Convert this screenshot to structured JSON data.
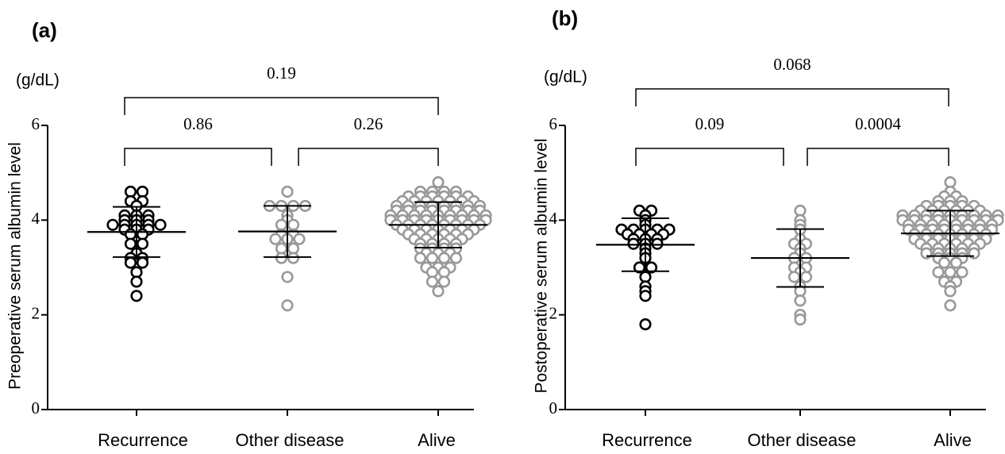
{
  "chart_data": [
    {
      "type": "strip",
      "label": "(a)",
      "unit": "(g/dL)",
      "ylabel": "Preoperative serum albumin level",
      "categories": [
        "Recurrence",
        "Other disease",
        "Alive"
      ],
      "ylim": [
        0,
        6
      ],
      "yticks": [
        0,
        2,
        4,
        6
      ],
      "comparisons": [
        0.19,
        0.86,
        0.26
      ],
      "groups": [
        {
          "color": "#000000",
          "mean": 3.75,
          "sd": 0.53,
          "values": [
            4.6,
            4.6,
            4.4,
            4.4,
            4.3,
            4.1,
            4.1,
            4.1,
            4.0,
            4.0,
            4.0,
            3.9,
            3.9,
            3.9,
            3.9,
            3.9,
            3.8,
            3.8,
            3.8,
            3.7,
            3.7,
            3.5,
            3.5,
            3.3,
            3.2,
            3.2,
            3.1,
            3.1,
            2.9,
            2.7,
            2.4
          ]
        },
        {
          "color": "#999999",
          "mean": 3.76,
          "sd": 0.54,
          "values": [
            4.6,
            4.3,
            4.3,
            4.3,
            4.3,
            4.1,
            4.0,
            3.9,
            3.9,
            3.7,
            3.7,
            3.6,
            3.6,
            3.6,
            3.4,
            3.4,
            3.2,
            3.2,
            2.8,
            2.2
          ]
        },
        {
          "color": "#999999",
          "mean": 3.9,
          "sd": 0.48,
          "values": [
            4.8,
            4.6,
            4.6,
            4.6,
            4.6,
            4.5,
            4.5,
            4.5,
            4.5,
            4.5,
            4.5,
            4.4,
            4.4,
            4.4,
            4.4,
            4.4,
            4.4,
            4.4,
            4.3,
            4.3,
            4.3,
            4.3,
            4.3,
            4.3,
            4.3,
            4.3,
            4.2,
            4.2,
            4.2,
            4.2,
            4.2,
            4.2,
            4.2,
            4.2,
            4.1,
            4.1,
            4.1,
            4.1,
            4.1,
            4.1,
            4.1,
            4.1,
            4.1,
            4.0,
            4.0,
            4.0,
            4.0,
            4.0,
            4.0,
            4.0,
            4.0,
            4.0,
            3.9,
            3.9,
            3.9,
            3.9,
            3.9,
            3.9,
            3.9,
            3.9,
            3.8,
            3.8,
            3.8,
            3.8,
            3.8,
            3.8,
            3.8,
            3.7,
            3.7,
            3.7,
            3.7,
            3.7,
            3.7,
            3.6,
            3.6,
            3.6,
            3.6,
            3.6,
            3.5,
            3.5,
            3.5,
            3.5,
            3.4,
            3.4,
            3.4,
            3.4,
            3.3,
            3.3,
            3.3,
            3.2,
            3.2,
            3.2,
            3.2,
            3.0,
            3.0,
            3.0,
            2.9,
            2.9,
            2.7,
            2.7,
            2.5
          ]
        }
      ]
    },
    {
      "type": "strip",
      "label": "(b)",
      "unit": "(g/dL)",
      "ylabel": "Postoperative serum albumin level",
      "categories": [
        "Recurrence",
        "Other disease",
        "Alive"
      ],
      "ylim": [
        0,
        6
      ],
      "yticks": [
        0,
        2,
        4,
        6
      ],
      "comparisons": [
        0.068,
        0.09,
        0.0004
      ],
      "groups": [
        {
          "color": "#000000",
          "mean": 3.48,
          "sd": 0.56,
          "values": [
            4.2,
            4.2,
            4.1,
            4.0,
            3.9,
            3.8,
            3.8,
            3.8,
            3.8,
            3.8,
            3.7,
            3.7,
            3.7,
            3.7,
            3.6,
            3.6,
            3.6,
            3.5,
            3.5,
            3.5,
            3.4,
            3.3,
            3.2,
            3.0,
            3.0,
            2.8,
            2.6,
            2.5,
            2.4,
            1.8
          ]
        },
        {
          "color": "#999999",
          "mean": 3.2,
          "sd": 0.61,
          "values": [
            4.2,
            4.0,
            3.9,
            3.8,
            3.6,
            3.5,
            3.5,
            3.4,
            3.3,
            3.2,
            3.2,
            3.0,
            3.0,
            2.9,
            2.8,
            2.8,
            2.6,
            2.5,
            2.3,
            2.0,
            1.9
          ]
        },
        {
          "color": "#999999",
          "mean": 3.72,
          "sd": 0.48,
          "values": [
            4.8,
            4.6,
            4.5,
            4.5,
            4.4,
            4.4,
            4.4,
            4.3,
            4.3,
            4.3,
            4.3,
            4.3,
            4.2,
            4.2,
            4.2,
            4.2,
            4.2,
            4.2,
            4.1,
            4.1,
            4.1,
            4.1,
            4.1,
            4.1,
            4.1,
            4.1,
            4.1,
            4.0,
            4.0,
            4.0,
            4.0,
            4.0,
            4.0,
            4.0,
            4.0,
            4.0,
            3.9,
            3.9,
            3.9,
            3.9,
            3.9,
            3.9,
            3.9,
            3.9,
            3.8,
            3.8,
            3.8,
            3.8,
            3.8,
            3.8,
            3.8,
            3.8,
            3.7,
            3.7,
            3.7,
            3.7,
            3.7,
            3.7,
            3.7,
            3.6,
            3.6,
            3.6,
            3.6,
            3.6,
            3.6,
            3.6,
            3.5,
            3.5,
            3.5,
            3.5,
            3.5,
            3.5,
            3.4,
            3.4,
            3.4,
            3.4,
            3.4,
            3.3,
            3.3,
            3.3,
            3.3,
            3.3,
            3.2,
            3.2,
            3.2,
            3.1,
            3.1,
            2.9,
            2.9,
            2.9,
            2.7,
            2.7,
            2.6,
            2.5,
            2.2
          ]
        }
      ]
    }
  ]
}
